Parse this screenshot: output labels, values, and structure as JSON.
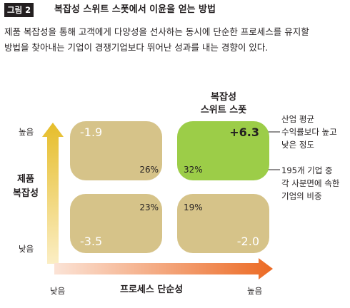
{
  "figure": {
    "label": "그림 2",
    "title": "복잡성 스위트 스폿에서 이윤을 얻는 방법",
    "description": [
      "제품 복잡성을 통해 고객에게 다양성을 선사하는 동시에 단순한 프로세스를 유지할",
      "방법을 찾아내는 기업이 경쟁기업보다 뛰어난 성과를 내는 경향이 있다."
    ]
  },
  "y_axis": {
    "label_line1": "제품",
    "label_line2": "복잡성",
    "high": "높음",
    "low": "낮음"
  },
  "x_axis": {
    "label": "프로세스 단순성",
    "low": "낮음",
    "high": "높음"
  },
  "sweet_spot": {
    "line1": "복잡성",
    "line2": "스위트 스폿"
  },
  "quadrants": {
    "top_left": {
      "value": "-1.9",
      "share": "26%"
    },
    "top_right": {
      "value": "+6.3",
      "share": "32%"
    },
    "bottom_left": {
      "value": "-3.5",
      "share": "23%"
    },
    "bottom_right": {
      "value": "-2.0",
      "share": "19%"
    }
  },
  "annotations": {
    "value_note": [
      "산업 평균",
      "수익률보다 높고",
      "낮은 정도"
    ],
    "share_note": [
      "195개 기업 중",
      "각 사분면에 속한",
      "기업의 비중"
    ]
  },
  "colors": {
    "quadrant_tan": "#d6c389",
    "quadrant_green": "#9ccd48",
    "y_arrow_gradient": [
      "#fbeec4",
      "#e6bd2a"
    ],
    "x_arrow_gradient": [
      "#fbe3d6",
      "#ec6a24"
    ]
  }
}
